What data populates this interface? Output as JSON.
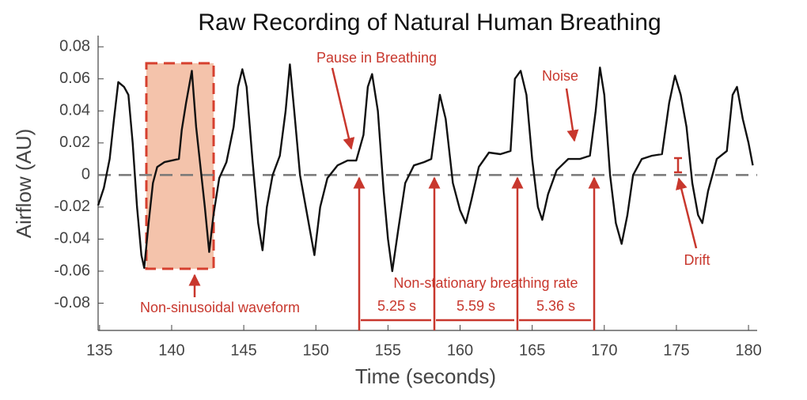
{
  "chart_data": {
    "type": "line",
    "title": "Raw Recording of Natural Human Breathing",
    "x_label": "Time (seconds)",
    "y_label": "Airflow (AU)",
    "xlim": [
      134.9,
      180.6
    ],
    "ylim": [
      -0.097,
      0.087
    ],
    "xticks": [
      135,
      140,
      145,
      150,
      155,
      160,
      165,
      170,
      175,
      180
    ],
    "yticks": [
      -0.08,
      -0.06,
      -0.04,
      -0.02,
      0,
      0.02,
      0.04,
      0.06,
      0.08
    ],
    "reference_line": 0,
    "series": [
      {
        "color": "#111111",
        "x": [
          134.9,
          135.3,
          135.7,
          136.0,
          136.3,
          136.7,
          137.0,
          137.3,
          137.6,
          137.9,
          138.1,
          138.4,
          138.7,
          139.0,
          139.5,
          140.0,
          140.5,
          140.7,
          141.0,
          141.4,
          141.7,
          142.0,
          142.3,
          142.6,
          142.9,
          143.3,
          143.8,
          144.3,
          144.6,
          144.9,
          145.2,
          145.6,
          146.0,
          146.3,
          146.6,
          147.0,
          147.5,
          147.9,
          148.2,
          148.5,
          148.9,
          149.4,
          149.9,
          150.3,
          150.8,
          151.5,
          152.2,
          152.8,
          153.3,
          153.6,
          153.9,
          154.3,
          154.7,
          155.0,
          155.3,
          155.7,
          156.2,
          156.8,
          157.5,
          158.0,
          158.3,
          158.6,
          159.0,
          159.5,
          160.0,
          160.4,
          160.8,
          161.3,
          162.0,
          162.8,
          163.5,
          163.8,
          164.2,
          164.6,
          165.0,
          165.4,
          165.7,
          166.1,
          166.7,
          167.5,
          168.3,
          169.0,
          169.4,
          169.7,
          170.0,
          170.4,
          170.8,
          171.2,
          171.6,
          172.0,
          172.6,
          173.3,
          174.0,
          174.5,
          174.9,
          175.3,
          175.7,
          176.1,
          176.5,
          176.8,
          177.2,
          177.8,
          178.5,
          178.9,
          179.2,
          179.6,
          180.0,
          180.3
        ],
        "values": [
          -0.019,
          -0.008,
          0.01,
          0.035,
          0.058,
          0.055,
          0.05,
          0.02,
          -0.02,
          -0.05,
          -0.058,
          -0.03,
          -0.005,
          0.005,
          0.008,
          0.009,
          0.01,
          0.028,
          0.045,
          0.065,
          0.03,
          0.005,
          -0.02,
          -0.048,
          -0.025,
          -0.002,
          0.008,
          0.03,
          0.055,
          0.066,
          0.055,
          0.01,
          -0.03,
          -0.047,
          -0.02,
          0.0,
          0.012,
          0.04,
          0.069,
          0.04,
          0.0,
          -0.025,
          -0.05,
          -0.02,
          -0.002,
          0.006,
          0.009,
          0.009,
          0.025,
          0.055,
          0.063,
          0.04,
          -0.01,
          -0.04,
          -0.06,
          -0.035,
          -0.005,
          0.006,
          0.008,
          0.01,
          0.03,
          0.05,
          0.035,
          -0.005,
          -0.022,
          -0.03,
          -0.015,
          0.005,
          0.014,
          0.013,
          0.015,
          0.06,
          0.065,
          0.05,
          0.01,
          -0.02,
          -0.028,
          -0.012,
          0.003,
          0.01,
          0.01,
          0.012,
          0.04,
          0.067,
          0.05,
          0.0,
          -0.03,
          -0.043,
          -0.025,
          0.0,
          0.01,
          0.012,
          0.013,
          0.045,
          0.062,
          0.05,
          0.03,
          -0.005,
          -0.025,
          -0.03,
          -0.01,
          0.01,
          0.015,
          0.05,
          0.055,
          0.035,
          0.02,
          0.006
        ]
      }
    ],
    "annotations": [
      "Pause in Breathing",
      "Noise",
      "Non-sinusoidal waveform",
      "Non-stationary breathing rate",
      "5.25 s",
      "5.59 s",
      "5.36 s",
      "Drift"
    ]
  }
}
